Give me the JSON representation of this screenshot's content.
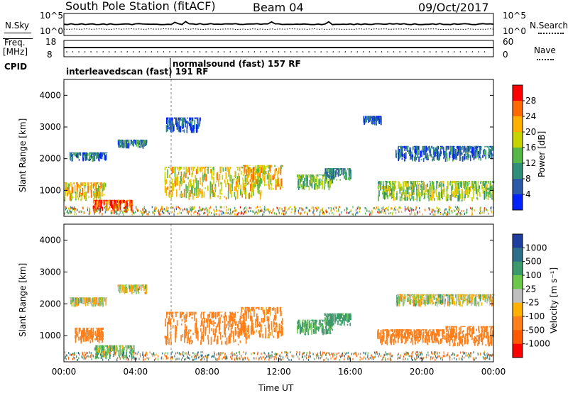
{
  "header": {
    "station": "South Pole Station (fitACF)",
    "beam": "Beam 04",
    "date": "09/Oct/2017"
  },
  "noise_panel": {
    "left_label": "N.Sky",
    "right_label": "N.Search",
    "left_ticks": [
      "10^5",
      "10^0"
    ],
    "right_ticks": [
      "10^5",
      "10^0"
    ]
  },
  "freq_panel": {
    "left_label_1": "Freq.",
    "left_label_2": "[MHz]",
    "right_label": "Nave",
    "left_ticks": [
      "18",
      "8"
    ],
    "right_ticks": [
      "60",
      "0"
    ]
  },
  "cpid": {
    "label": "CPID",
    "modes": [
      {
        "text": "interleavedscan (fast)  191  RF",
        "start_hour": 0
      },
      {
        "text": "normalsound (fast)  157  RF",
        "start_hour": 6
      }
    ]
  },
  "power_colorbar": {
    "label": "Power [dB]",
    "ticks": [
      "28",
      "24",
      "20",
      "16",
      "12",
      "8",
      "4"
    ],
    "colors": [
      "#ff0000",
      "#ff6a00",
      "#ffb000",
      "#c8d400",
      "#55b848",
      "#2f8f78",
      "#2a5aa8",
      "#0022ff"
    ]
  },
  "velocity_colorbar": {
    "label": "Velocity [m s⁻¹]",
    "ticks": [
      "1000",
      "500",
      "100",
      "25",
      "-25",
      "-100",
      "-500",
      "-1000"
    ],
    "colors": [
      "#1f3fa0",
      "#2d6f8a",
      "#3c9a6a",
      "#6cc74a",
      "#bfbfbf",
      "#ffb000",
      "#ff7f1a",
      "#ff5a00",
      "#ff0000"
    ]
  },
  "chart_data": [
    {
      "type": "heatmap",
      "name": "power",
      "ylabel": "Slant Range [km]",
      "ylim": [
        180,
        4500
      ],
      "yticks": [
        "4000",
        "3000",
        "2000",
        "1000"
      ],
      "xlim": [
        0,
        24
      ],
      "colorbar_label": "Power [dB]",
      "regions": [
        {
          "t": [
            0,
            2.3
          ],
          "r": [
            650,
            1250
          ],
          "value": 18
        },
        {
          "t": [
            0.3,
            2.4
          ],
          "r": [
            1900,
            2200
          ],
          "value": 6
        },
        {
          "t": [
            3.0,
            4.6
          ],
          "r": [
            2300,
            2600
          ],
          "value": 7
        },
        {
          "t": [
            1.6,
            3.8
          ],
          "r": [
            300,
            700
          ],
          "value": 26
        },
        {
          "t": [
            5.6,
            11.0
          ],
          "r": [
            700,
            1750
          ],
          "value": 17
        },
        {
          "t": [
            10.0,
            12.2
          ],
          "r": [
            1000,
            1800
          ],
          "value": 18
        },
        {
          "t": [
            13.0,
            15.0
          ],
          "r": [
            1000,
            1500
          ],
          "value": 12
        },
        {
          "t": [
            14.5,
            16.0
          ],
          "r": [
            1300,
            1700
          ],
          "value": 8
        },
        {
          "t": [
            17.5,
            24.0
          ],
          "r": [
            650,
            1300
          ],
          "value": 14
        },
        {
          "t": [
            18.5,
            24.0
          ],
          "r": [
            1900,
            2400
          ],
          "value": 5
        },
        {
          "t": [
            16.7,
            17.7
          ],
          "r": [
            3050,
            3350
          ],
          "value": 4
        },
        {
          "t": [
            5.7,
            7.6
          ],
          "r": [
            2800,
            3300
          ],
          "value": 4
        }
      ]
    },
    {
      "type": "heatmap",
      "name": "velocity",
      "ylabel": "Slant Range [km]",
      "ylim": [
        180,
        4500
      ],
      "yticks": [
        "4000",
        "3000",
        "2000",
        "1000"
      ],
      "xlim": [
        0,
        24
      ],
      "xticks": [
        "00:00",
        "04:00",
        "08:00",
        "12:00",
        "16:00",
        "20:00",
        "00:00"
      ],
      "xlabel": "Time UT",
      "colorbar_label": "Velocity [m s⁻¹]",
      "regions": [
        {
          "t": [
            0.6,
            2.2
          ],
          "r": [
            750,
            1250
          ],
          "value": -300
        },
        {
          "t": [
            0.3,
            2.4
          ],
          "r": [
            1900,
            2200
          ],
          "value": 0
        },
        {
          "t": [
            1.7,
            3.9
          ],
          "r": [
            250,
            700
          ],
          "value": 60
        },
        {
          "t": [
            3.0,
            4.6
          ],
          "r": [
            2300,
            2600
          ],
          "value": 0
        },
        {
          "t": [
            5.6,
            10.2
          ],
          "r": [
            700,
            1750
          ],
          "value": -250
        },
        {
          "t": [
            9.8,
            12.2
          ],
          "r": [
            900,
            1900
          ],
          "value": -200
        },
        {
          "t": [
            13.0,
            15.0
          ],
          "r": [
            1000,
            1500
          ],
          "value": 150
        },
        {
          "t": [
            14.5,
            16.0
          ],
          "r": [
            1300,
            1700
          ],
          "value": 200
        },
        {
          "t": [
            17.5,
            21.5
          ],
          "r": [
            700,
            1200
          ],
          "value": -300
        },
        {
          "t": [
            21.3,
            24.0
          ],
          "r": [
            650,
            1300
          ],
          "value": -300
        },
        {
          "t": [
            18.5,
            24.0
          ],
          "r": [
            1900,
            2300
          ],
          "value": 0
        }
      ]
    }
  ]
}
